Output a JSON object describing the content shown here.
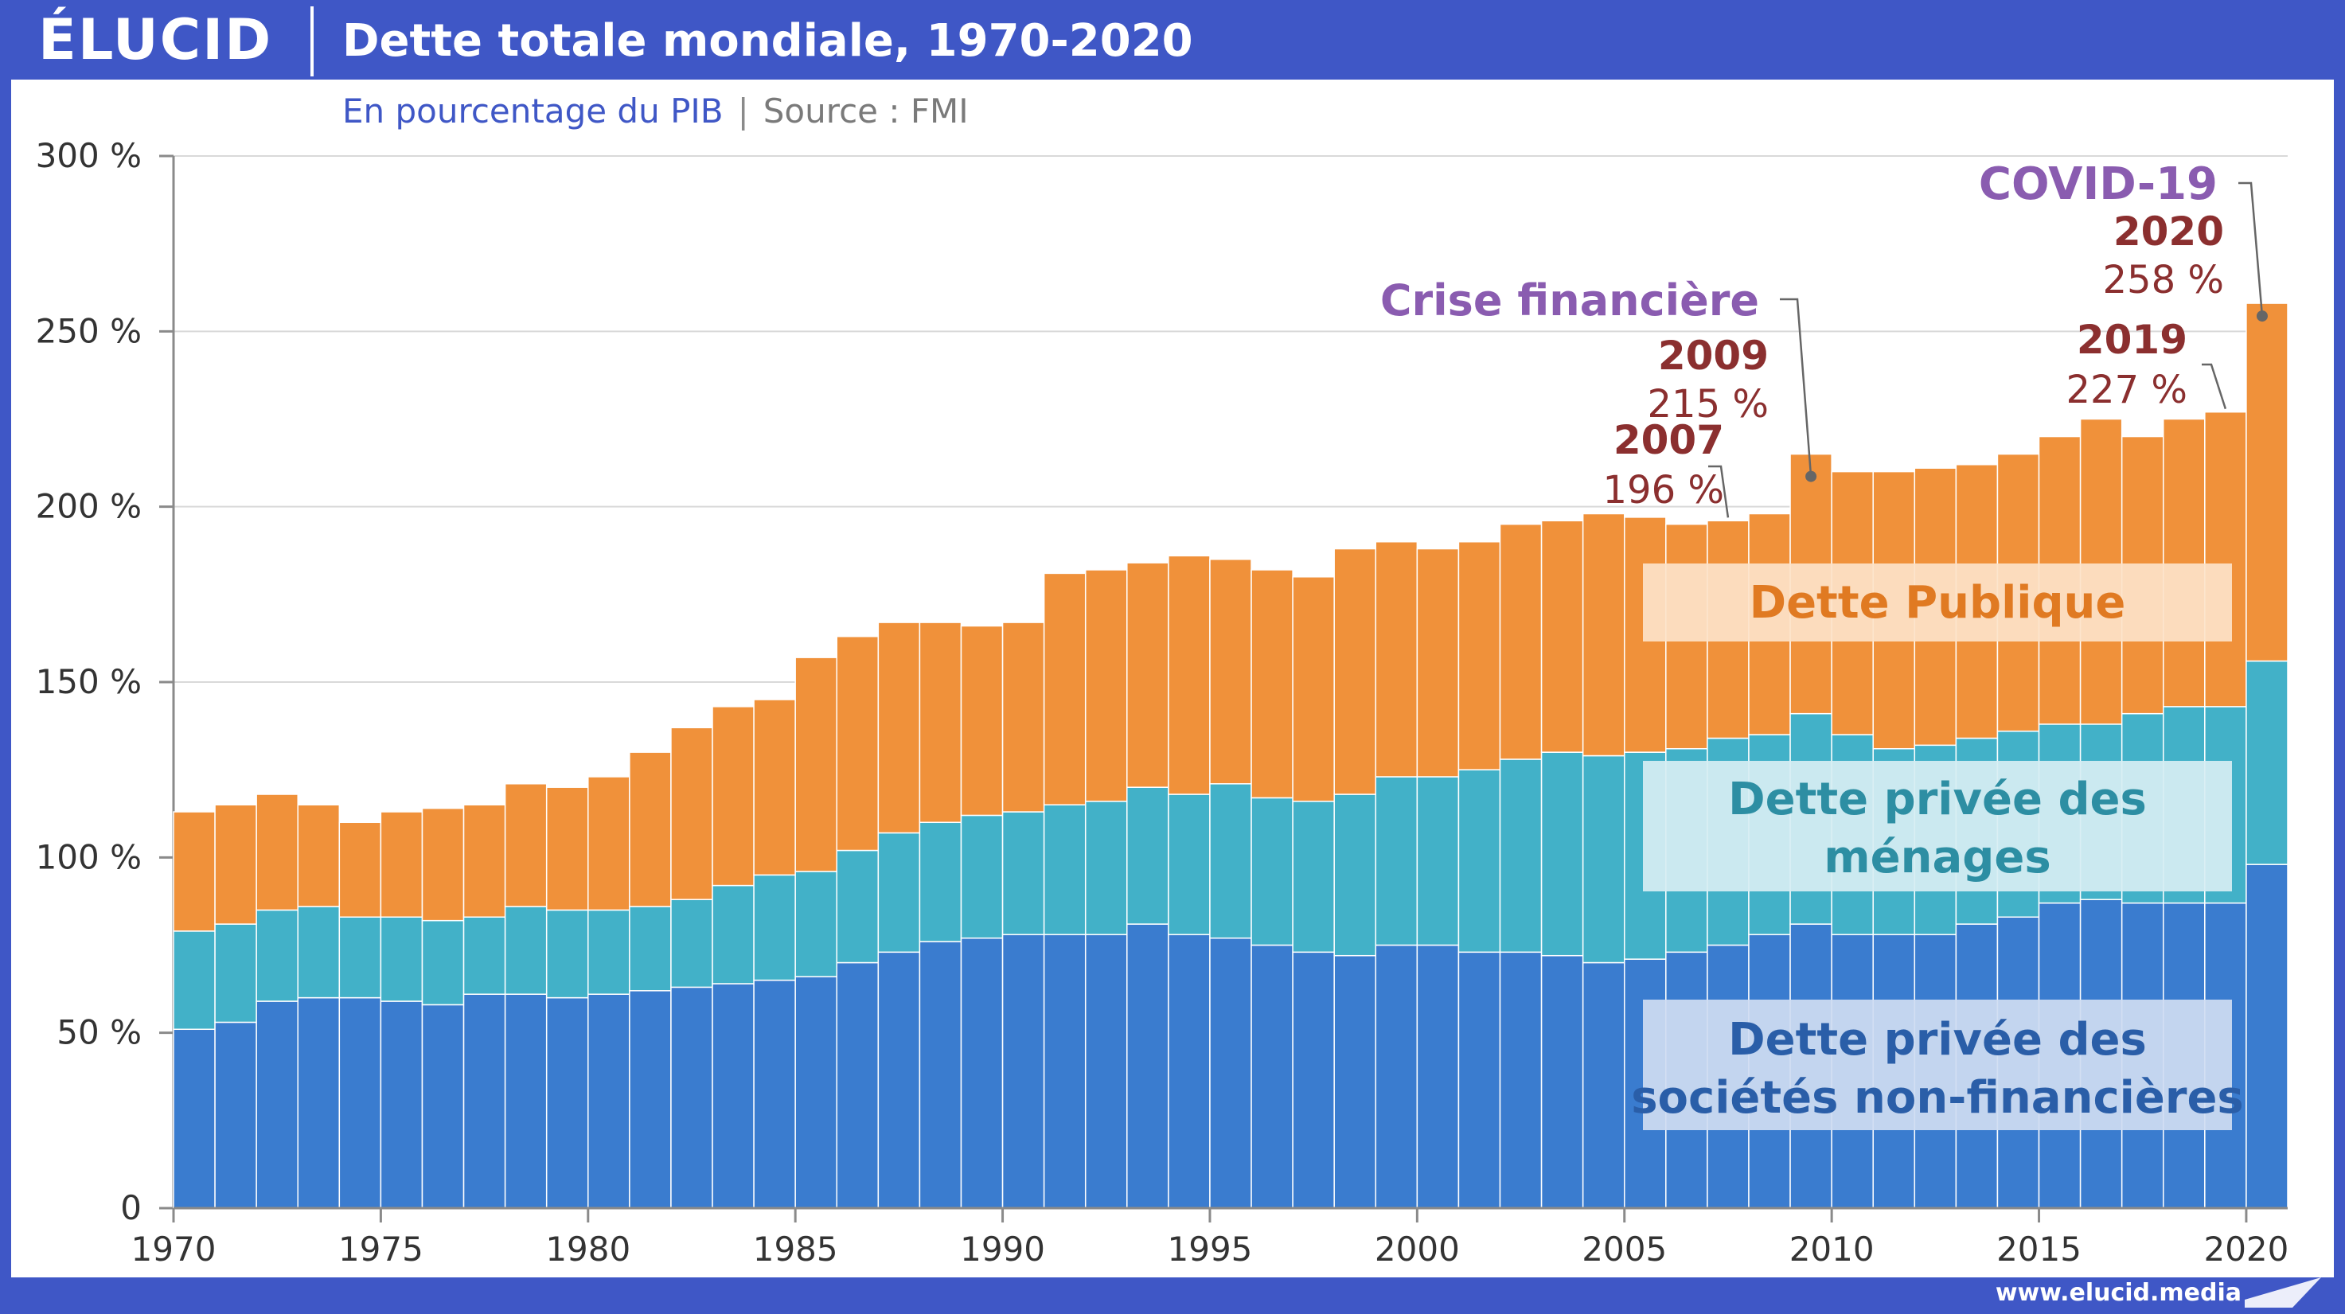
{
  "header": {
    "logo": "ÉLUCID",
    "title": "Dette totale mondiale, 1970-2020"
  },
  "subheader": {
    "subtitle": "En pourcentage du PIB",
    "separator": "|",
    "source": "Source : FMI"
  },
  "footer": {
    "url": "www.elucid.media"
  },
  "colors": {
    "frame": "#3f57c6",
    "corporate": "#3a7ccf",
    "households": "#42b1c8",
    "public": "#f0913a",
    "annotation_year": "#8b2f2f",
    "annotation_event": "#8a5cb0"
  },
  "chart_data": {
    "type": "bar",
    "stacked": true,
    "title": "Dette totale mondiale, 1970-2020",
    "subtitle": "En pourcentage du PIB",
    "xlabel": "",
    "ylabel": "",
    "ylim": [
      0,
      300
    ],
    "yticks": [
      "0",
      "50 %",
      "100 %",
      "150 %",
      "200 %",
      "250 %",
      "300 %"
    ],
    "ytick_values": [
      0,
      50,
      100,
      150,
      200,
      250,
      300
    ],
    "xticks": [
      "1970",
      "1975",
      "1980",
      "1985",
      "1990",
      "1995",
      "2000",
      "2005",
      "2010",
      "2015",
      "2020"
    ],
    "grid": true,
    "categories": [
      1970,
      1971,
      1972,
      1973,
      1974,
      1975,
      1976,
      1977,
      1978,
      1979,
      1980,
      1981,
      1982,
      1983,
      1984,
      1985,
      1986,
      1987,
      1988,
      1989,
      1990,
      1991,
      1992,
      1993,
      1994,
      1995,
      1996,
      1997,
      1998,
      1999,
      2000,
      2001,
      2002,
      2003,
      2004,
      2005,
      2006,
      2007,
      2008,
      2009,
      2010,
      2011,
      2012,
      2013,
      2014,
      2015,
      2016,
      2017,
      2018,
      2019,
      2020
    ],
    "series": [
      {
        "name": "Dette privée des sociétés non-financières",
        "values": [
          51,
          53,
          59,
          60,
          60,
          59,
          58,
          61,
          61,
          60,
          61,
          62,
          63,
          64,
          65,
          66,
          70,
          73,
          76,
          77,
          78,
          78,
          78,
          81,
          78,
          77,
          75,
          73,
          72,
          75,
          75,
          73,
          73,
          72,
          70,
          71,
          73,
          75,
          78,
          81,
          78,
          78,
          78,
          81,
          83,
          87,
          88,
          87,
          87,
          87,
          98
        ]
      },
      {
        "name": "Dette privée des ménages",
        "values": [
          28,
          28,
          26,
          26,
          23,
          24,
          24,
          22,
          25,
          25,
          24,
          24,
          25,
          28,
          30,
          30,
          32,
          34,
          34,
          35,
          35,
          37,
          38,
          39,
          40,
          44,
          42,
          43,
          46,
          48,
          48,
          52,
          55,
          58,
          59,
          59,
          58,
          59,
          57,
          60,
          57,
          53,
          54,
          53,
          53,
          51,
          50,
          54,
          56,
          56,
          58
        ]
      },
      {
        "name": "Dette Publique",
        "values": [
          34,
          34,
          33,
          29,
          27,
          30,
          32,
          32,
          35,
          35,
          38,
          44,
          49,
          51,
          50,
          61,
          61,
          60,
          57,
          54,
          54,
          66,
          66,
          64,
          68,
          64,
          65,
          64,
          70,
          67,
          65,
          65,
          67,
          66,
          69,
          67,
          64,
          62,
          63,
          74,
          75,
          79,
          79,
          78,
          79,
          82,
          87,
          79,
          82,
          84,
          102
        ]
      }
    ],
    "totals_labelled": [
      {
        "year": "2007",
        "value": "196 %"
      },
      {
        "year": "2009",
        "value": "215 %"
      },
      {
        "year": "2019",
        "value": "227 %"
      },
      {
        "year": "2020",
        "value": "258 %"
      }
    ],
    "events": [
      {
        "label": "Crise financière",
        "year": 2009
      },
      {
        "label": "COVID-19",
        "year": 2020
      }
    ],
    "legend_labels": {
      "public": "Dette Publique",
      "households_1": "Dette privée des",
      "households_2": "ménages",
      "corporate_1": "Dette privée des",
      "corporate_2": "sociétés non-financières"
    }
  }
}
